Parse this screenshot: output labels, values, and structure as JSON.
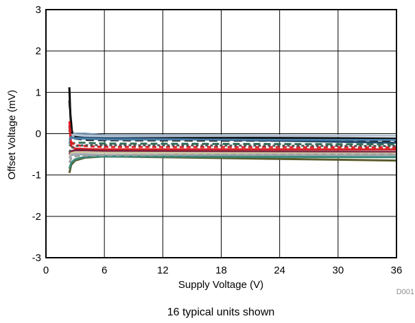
{
  "chart_data": {
    "type": "line",
    "xlabel": "Supply Voltage (V)",
    "ylabel": "Offset Voltage (mV)",
    "xlim": [
      0,
      36
    ],
    "ylim": [
      -3,
      3
    ],
    "x_ticks": [
      "0",
      "6",
      "12",
      "18",
      "24",
      "30",
      "36"
    ],
    "y_ticks": [
      "3",
      "2",
      "1",
      "0",
      "-1",
      "-2",
      "-3"
    ],
    "grid": true,
    "figure_code": "D001",
    "caption": "16 typical units shown",
    "series": [
      {
        "color": "#000000",
        "dash": "none",
        "x": [
          2.4,
          2.5,
          2.7,
          3,
          4,
          6,
          36
        ],
        "y": [
          1.12,
          0.5,
          -0.02,
          -0.05,
          -0.05,
          -0.08,
          -0.12
        ]
      },
      {
        "color": "#1a1a1a",
        "dash": "12 6",
        "x": [
          2.4,
          2.6,
          3,
          4,
          6,
          36
        ],
        "y": [
          0.8,
          0.1,
          -0.12,
          -0.15,
          -0.16,
          -0.18
        ]
      },
      {
        "color": "#6f8fa8",
        "dash": "none",
        "x": [
          2.4,
          2.6,
          3,
          4,
          6,
          36
        ],
        "y": [
          -0.25,
          -0.05,
          0.0,
          0.0,
          -0.04,
          -0.05
        ]
      },
      {
        "color": "#244a6b",
        "dash": "none",
        "x": [
          2.4,
          2.6,
          3,
          4,
          6,
          36
        ],
        "y": [
          0.1,
          -0.1,
          -0.1,
          -0.08,
          -0.1,
          -0.22
        ]
      },
      {
        "color": "#b8c6d6",
        "dash": "none",
        "x": [
          2.4,
          2.6,
          3,
          4,
          6,
          36
        ],
        "y": [
          -0.1,
          -0.03,
          -0.03,
          -0.05,
          -0.06,
          -0.05
        ]
      },
      {
        "color": "#2f6f5a",
        "dash": "10 5",
        "x": [
          2.4,
          2.6,
          3,
          4,
          6,
          36
        ],
        "y": [
          -0.3,
          -0.25,
          -0.22,
          -0.22,
          -0.24,
          -0.26
        ]
      },
      {
        "color": "#e31c23",
        "dash": "6 4",
        "x": [
          2.4,
          2.6,
          3,
          4,
          6,
          36
        ],
        "y": [
          0.3,
          -0.2,
          -0.28,
          -0.3,
          -0.32,
          -0.33
        ]
      },
      {
        "color": "#d32026",
        "dash": "none",
        "x": [
          2.4,
          2.6,
          3,
          4,
          6,
          36
        ],
        "y": [
          0.2,
          -0.3,
          -0.36,
          -0.37,
          -0.38,
          -0.38
        ]
      },
      {
        "color": "#7a1f3d",
        "dash": "none",
        "x": [
          2.4,
          2.6,
          3,
          4,
          6,
          36
        ],
        "y": [
          -0.5,
          -0.42,
          -0.4,
          -0.4,
          -0.42,
          -0.44
        ]
      },
      {
        "color": "#c9c3a0",
        "dash": "none",
        "x": [
          2.4,
          2.6,
          3,
          4,
          6,
          36
        ],
        "y": [
          -0.55,
          -0.47,
          -0.45,
          -0.45,
          -0.46,
          -0.48
        ]
      },
      {
        "color": "#9fa8b5",
        "dash": "none",
        "x": [
          2.4,
          2.6,
          3,
          4,
          6,
          36
        ],
        "y": [
          -0.6,
          -0.52,
          -0.5,
          -0.5,
          -0.52,
          -0.52
        ]
      },
      {
        "color": "#4a7fa8",
        "dash": "none",
        "x": [
          2.4,
          2.6,
          3,
          4,
          6,
          36
        ],
        "y": [
          -0.15,
          -0.08,
          -0.12,
          -0.12,
          -0.14,
          -0.15
        ]
      },
      {
        "color": "#5a5a2a",
        "dash": "none",
        "x": [
          2.4,
          2.6,
          3,
          4,
          6,
          36
        ],
        "y": [
          -0.95,
          -0.75,
          -0.65,
          -0.58,
          -0.55,
          -0.65
        ]
      },
      {
        "color": "#3a8a7a",
        "dash": "none",
        "x": [
          2.4,
          2.6,
          3,
          4,
          6,
          36
        ],
        "y": [
          -0.85,
          -0.7,
          -0.62,
          -0.56,
          -0.55,
          -0.57
        ]
      },
      {
        "color": "#a0a0a0",
        "dash": "8 4",
        "x": [
          2.4,
          2.6,
          3,
          4,
          6,
          36
        ],
        "y": [
          -0.7,
          -0.6,
          -0.55,
          -0.53,
          -0.52,
          -0.5
        ]
      },
      {
        "color": "#555555",
        "dash": "4 3",
        "x": [
          2.4,
          2.6,
          3,
          4,
          6,
          36
        ],
        "y": [
          -0.45,
          -0.35,
          -0.3,
          -0.28,
          -0.28,
          -0.3
        ]
      }
    ]
  }
}
